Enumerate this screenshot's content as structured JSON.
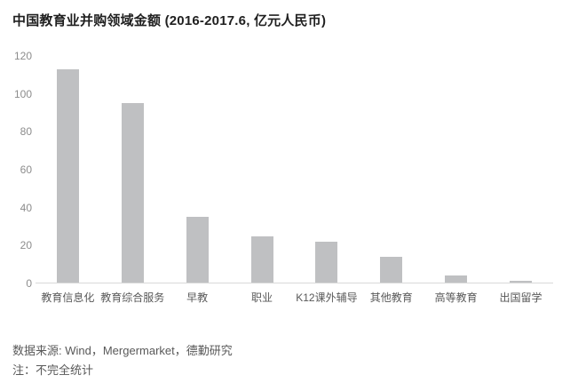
{
  "title": "中国教育业并购领域金额 (2016-2017.6, 亿元人民币)",
  "footer": {
    "source": "数据来源: Wind，Mergermarket，德勤研究",
    "note": "注：不完全统计"
  },
  "colors": {
    "bar": "#bfc0c2",
    "title_text": "#1f1f1f",
    "y_tick_label": "#8c8c8c",
    "category_label": "#595959",
    "axis_line": "#d9d9d9",
    "background": "#ffffff"
  },
  "chart_data": {
    "type": "bar",
    "title": "中国教育业并购领域金额 (2016-2017.6, 亿元人民币)",
    "categories": [
      "教育信息化",
      "教育综合服务",
      "早教",
      "职业",
      "K12课外辅导",
      "其他教育",
      "高等教育",
      "出国留学"
    ],
    "values": [
      113,
      95,
      35,
      25,
      22,
      14,
      4,
      1.5
    ],
    "xlabel": "",
    "ylabel": "",
    "ylim": [
      0,
      120
    ],
    "yticks": [
      0,
      20,
      40,
      60,
      80,
      100,
      120
    ],
    "grid": false,
    "legend": null,
    "bar_color": "#bfc0c2"
  }
}
